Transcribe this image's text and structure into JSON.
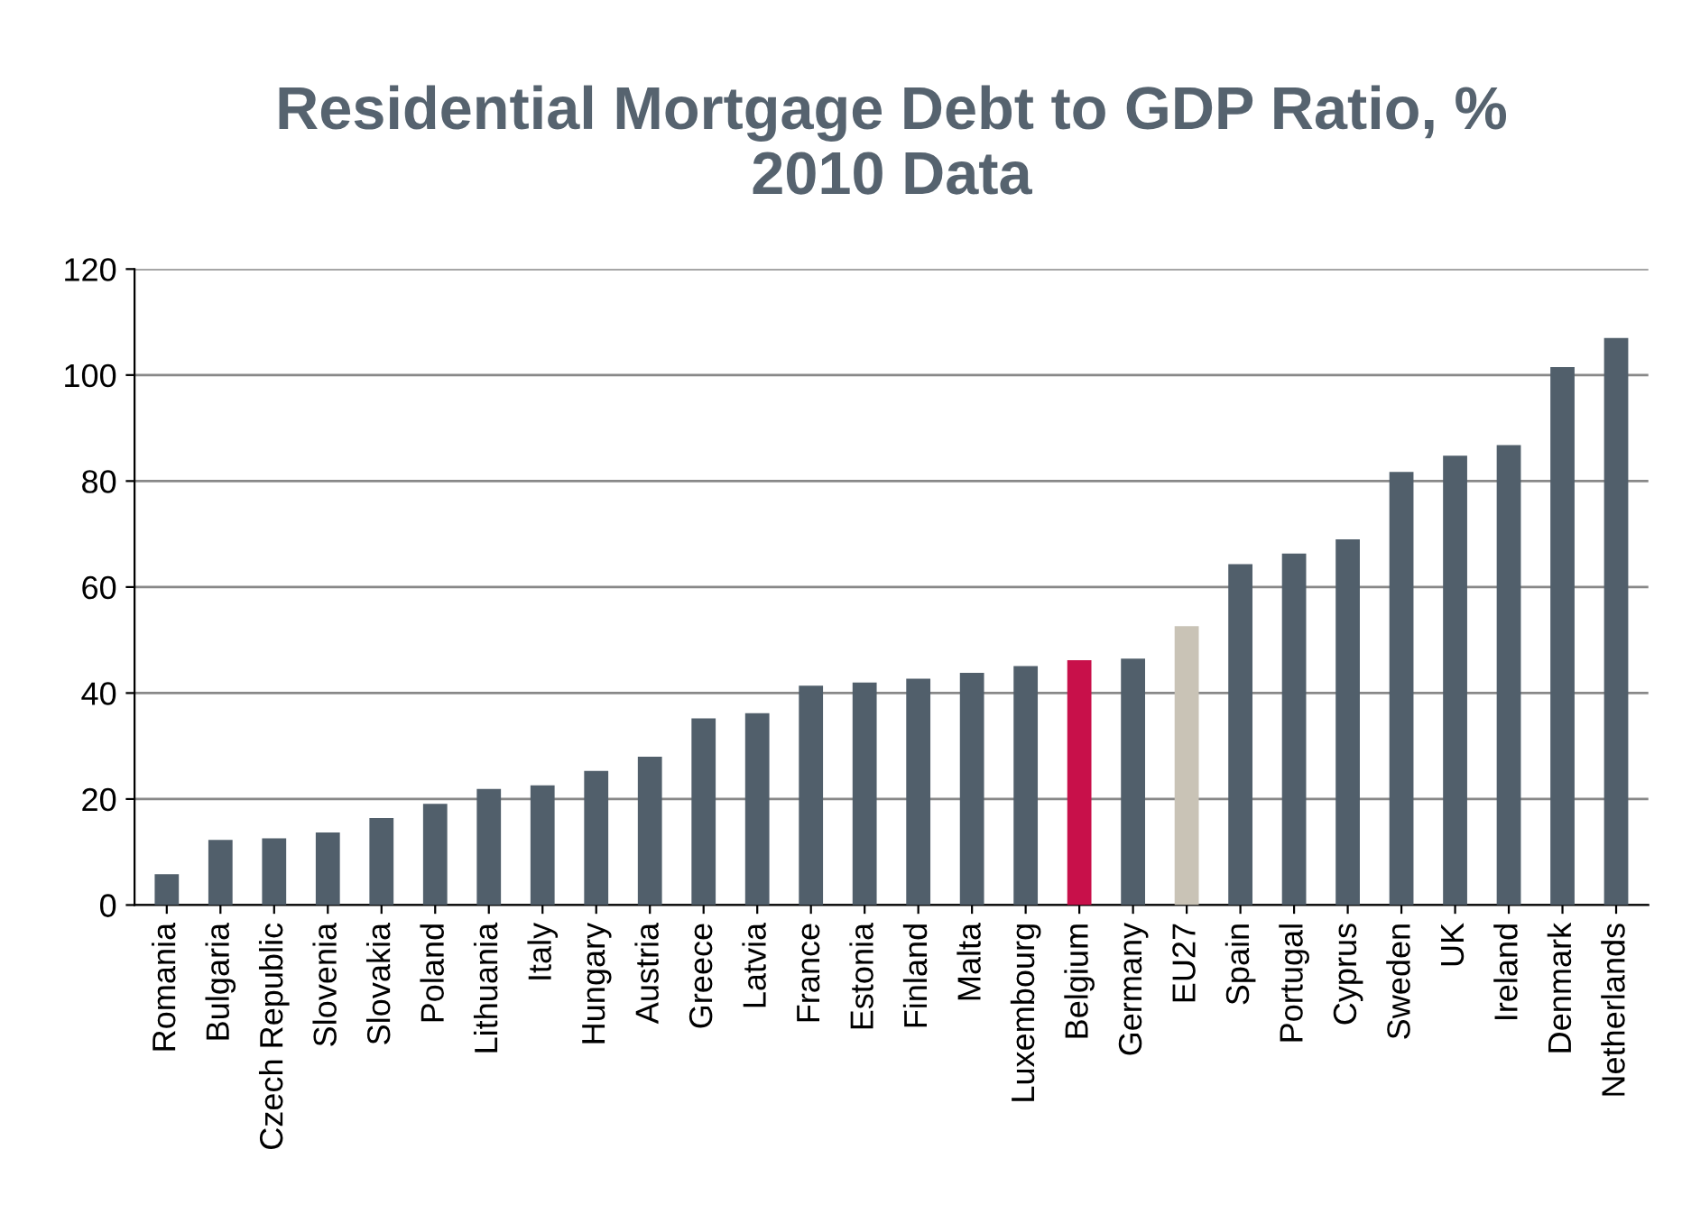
{
  "chart_data": {
    "type": "bar",
    "title": "Residential Mortgage Debt to GDP Ratio, %\n2010 Data",
    "categories": [
      "Romania",
      "Bulgaria",
      "Czech Republic",
      "Slovenia",
      "Slovakia",
      "Poland",
      "Lithuania",
      "Italy",
      "Hungary",
      "Austria",
      "Greece",
      "Latvia",
      "France",
      "Estonia",
      "Finland",
      "Malta",
      "Luxembourg",
      "Belgium",
      "Germany",
      "EU27",
      "Spain",
      "Portugal",
      "Cyprus",
      "Sweden",
      "UK",
      "Ireland",
      "Denmark",
      "Netherlands"
    ],
    "values": [
      5.8,
      12.3,
      12.6,
      13.7,
      16.4,
      19.1,
      21.9,
      22.6,
      25.3,
      28,
      35.2,
      36.2,
      41.4,
      42,
      42.7,
      43.8,
      45.1,
      46.2,
      46.5,
      52.6,
      64.3,
      66.3,
      69,
      81.7,
      84.8,
      86.8,
      101.5,
      107
    ],
    "colors": [
      "#515f6b",
      "#515f6b",
      "#515f6b",
      "#515f6b",
      "#515f6b",
      "#515f6b",
      "#515f6b",
      "#515f6b",
      "#515f6b",
      "#515f6b",
      "#515f6b",
      "#515f6b",
      "#515f6b",
      "#515f6b",
      "#515f6b",
      "#515f6b",
      "#515f6b",
      "#c8104a",
      "#515f6b",
      "#c9c3b6",
      "#515f6b",
      "#515f6b",
      "#515f6b",
      "#515f6b",
      "#515f6b",
      "#515f6b",
      "#515f6b",
      "#515f6b"
    ],
    "ylim": [
      0,
      120
    ],
    "yticks": [
      0,
      20,
      40,
      60,
      80,
      100,
      120
    ],
    "grid": "y"
  }
}
